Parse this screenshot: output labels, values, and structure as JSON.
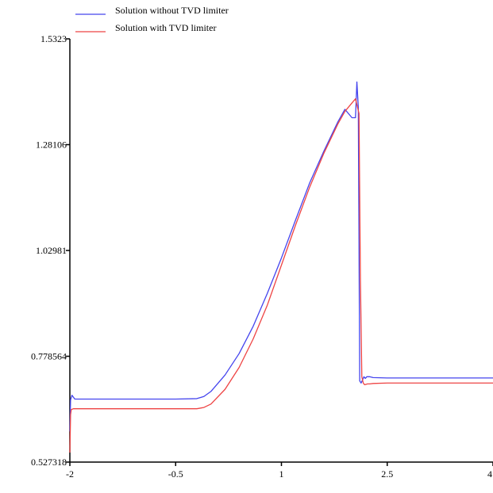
{
  "chart_data": {
    "type": "line",
    "title": "",
    "xlabel": "",
    "ylabel": "",
    "xlim": [
      -2,
      4
    ],
    "ylim": [
      0.527318,
      1.5323
    ],
    "x_ticks": [
      -2,
      -0.5,
      1,
      2.5,
      4
    ],
    "x_tick_labels": [
      "-2",
      "-0.5",
      "1",
      "2.5",
      "4"
    ],
    "y_ticks": [
      0.527318,
      0.778564,
      1.02981,
      1.28106,
      1.5323
    ],
    "y_tick_labels": [
      "0.527318",
      "0.778564",
      "1.02981",
      "1.28106",
      "1.5323"
    ],
    "grid": false,
    "legend_position": "top-left",
    "series": [
      {
        "name": "Solution without TVD limiter",
        "color": "#4444ee",
        "x": [
          -2,
          -1.99,
          -1.97,
          -1.93,
          -1.5,
          -1.0,
          -0.5,
          -0.2,
          -0.1,
          0.0,
          0.2,
          0.4,
          0.6,
          0.8,
          1.0,
          1.2,
          1.4,
          1.6,
          1.8,
          1.9,
          2.0,
          2.05,
          2.07,
          2.09,
          2.11,
          2.13,
          2.17,
          2.19,
          2.21,
          2.25,
          2.3,
          2.5,
          3.0,
          3.5,
          4.0
        ],
        "y": [
          0.6,
          0.675,
          0.686,
          0.677,
          0.677,
          0.677,
          0.677,
          0.678,
          0.683,
          0.695,
          0.734,
          0.785,
          0.85,
          0.928,
          1.012,
          1.102,
          1.19,
          1.265,
          1.335,
          1.365,
          1.345,
          1.345,
          1.43,
          1.37,
          0.72,
          0.715,
          0.73,
          0.726,
          0.73,
          0.73,
          0.728,
          0.727,
          0.727,
          0.727,
          0.727
        ]
      },
      {
        "name": "Solution with TVD limiter",
        "color": "#ee4444",
        "x": [
          -2,
          -1.99,
          -1.98,
          -1.95,
          -1.5,
          -1.0,
          -0.5,
          -0.2,
          -0.1,
          0.0,
          0.2,
          0.4,
          0.6,
          0.8,
          1.0,
          1.2,
          1.4,
          1.6,
          1.8,
          1.9,
          2.0,
          2.05,
          2.1,
          2.12,
          2.14,
          2.16,
          2.18,
          2.2,
          2.22,
          2.25,
          2.3,
          2.5,
          3.0,
          3.5,
          4.0
        ],
        "y": [
          0.55,
          0.64,
          0.652,
          0.654,
          0.654,
          0.654,
          0.654,
          0.654,
          0.657,
          0.665,
          0.7,
          0.752,
          0.82,
          0.9,
          0.995,
          1.09,
          1.18,
          1.26,
          1.33,
          1.36,
          1.38,
          1.39,
          1.355,
          0.96,
          0.73,
          0.715,
          0.711,
          0.712,
          0.713,
          0.713,
          0.714,
          0.715,
          0.715,
          0.715,
          0.715
        ]
      }
    ]
  }
}
